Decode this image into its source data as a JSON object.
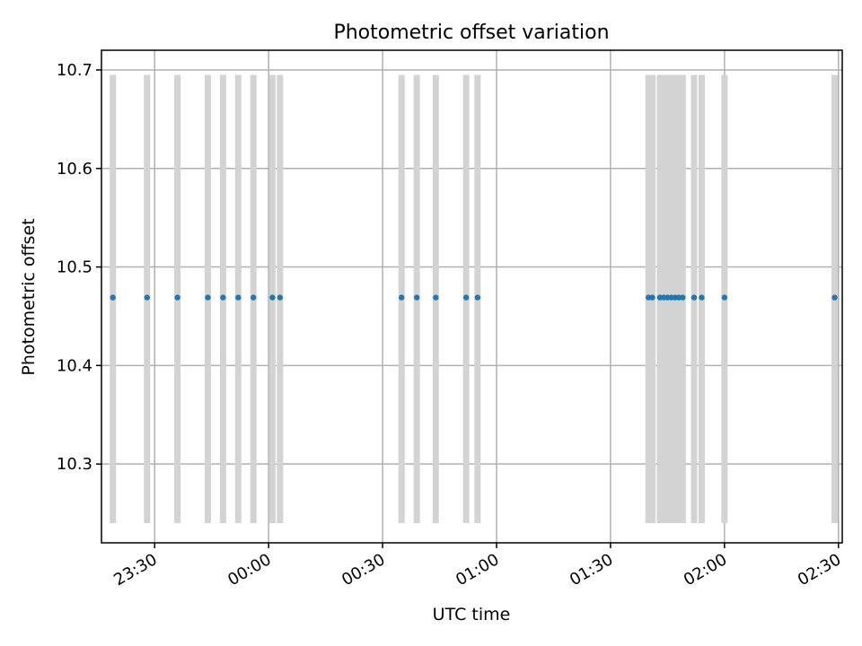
{
  "chart_data": {
    "type": "scatter",
    "title": "Photometric offset variation",
    "xlabel": "UTC time",
    "ylabel": "Photometric offset",
    "xlim": [
      "23:16",
      "02:31"
    ],
    "ylim": [
      10.22,
      10.72
    ],
    "x_ticks": [
      "23:30",
      "00:00",
      "00:30",
      "01:00",
      "01:30",
      "02:00",
      "02:30"
    ],
    "y_ticks": [
      10.3,
      10.4,
      10.5,
      10.6,
      10.7
    ],
    "grid": true,
    "band_range": [
      10.24,
      10.695
    ],
    "colors": {
      "points": "#1f77b4",
      "bands": "#d3d3d3",
      "grid": "#b0b0b0"
    },
    "series": [
      {
        "times": [
          "23:19",
          "23:28",
          "23:36",
          "23:44",
          "23:48",
          "23:52",
          "23:56",
          "24:01",
          "24:03",
          "24:35",
          "24:39",
          "24:44",
          "24:52",
          "24:55",
          "25:40",
          "25:41",
          "25:43",
          "25:44",
          "25:45",
          "25:46",
          "25:47",
          "25:48",
          "25:49",
          "25:52",
          "25:54",
          "26:00",
          "26:29"
        ],
        "values": [
          10.469,
          10.469,
          10.469,
          10.469,
          10.469,
          10.469,
          10.469,
          10.469,
          10.469,
          10.469,
          10.469,
          10.469,
          10.469,
          10.469,
          10.469,
          10.469,
          10.469,
          10.469,
          10.469,
          10.469,
          10.469,
          10.469,
          10.469,
          10.469,
          10.469,
          10.469,
          10.469
        ]
      }
    ]
  }
}
